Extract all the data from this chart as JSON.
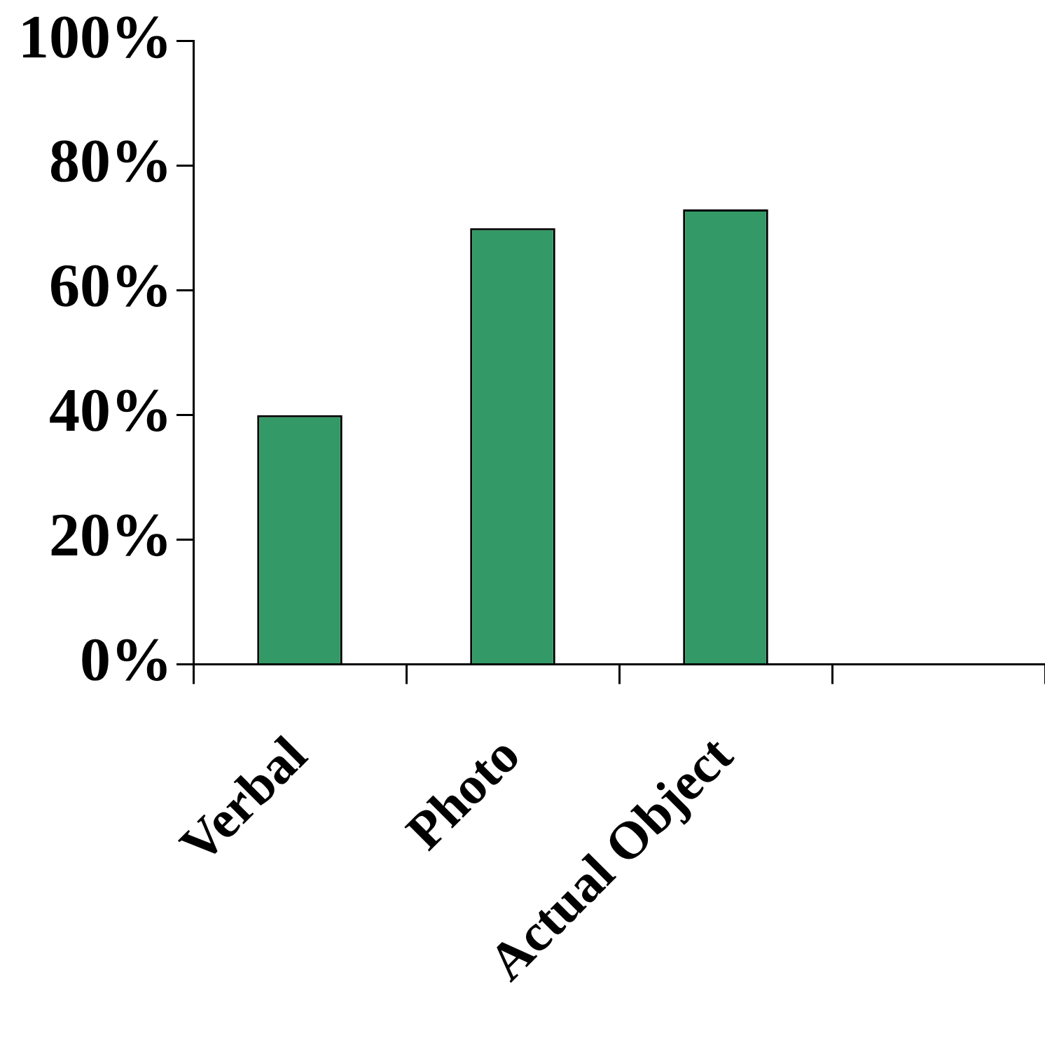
{
  "chart_data": {
    "type": "bar",
    "categories": [
      "Verbal",
      "Photo",
      "Actual Object",
      null
    ],
    "values": [
      40,
      70,
      73,
      null
    ],
    "color": "#339966",
    "ylim": [
      0,
      100
    ],
    "yticks": [
      {
        "value": 0,
        "label": "0%"
      },
      {
        "value": 20,
        "label": "20%"
      },
      {
        "value": 40,
        "label": "40%"
      },
      {
        "value": 60,
        "label": "60%"
      },
      {
        "value": 80,
        "label": "80%"
      },
      {
        "value": 100,
        "label": "100%"
      }
    ],
    "grid": false,
    "legend": false
  }
}
